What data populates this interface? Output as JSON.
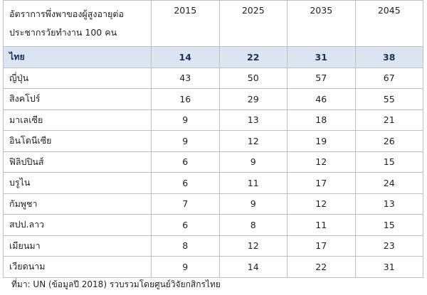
{
  "table": {
    "header_label_line1": "อัตราการพึ่งพาของผู้สูงอายุต่อ",
    "header_label_line2": "ประชากรวัยทำงาน 100 คน",
    "years": [
      "2015",
      "2025",
      "2035",
      "2045"
    ],
    "highlight_color": "#dbe5f1",
    "rows": [
      {
        "country": "ไทย",
        "values": [
          "14",
          "22",
          "31",
          "38"
        ],
        "highlight": true
      },
      {
        "country": "ญี่ปุ่น",
        "values": [
          "43",
          "50",
          "57",
          "67"
        ]
      },
      {
        "country": "สิงคโปร์",
        "values": [
          "16",
          "29",
          "46",
          "55"
        ]
      },
      {
        "country": "มาเลเซีย",
        "values": [
          "9",
          "13",
          "18",
          "21"
        ]
      },
      {
        "country": "อินโดนีเซีย",
        "values": [
          "9",
          "12",
          "19",
          "26"
        ]
      },
      {
        "country": "ฟิลิปปินส์",
        "values": [
          "6",
          "9",
          "12",
          "15"
        ]
      },
      {
        "country": "บรูไน",
        "values": [
          "6",
          "11",
          "17",
          "24"
        ]
      },
      {
        "country": "กัมพูชา",
        "values": [
          "7",
          "9",
          "12",
          "13"
        ]
      },
      {
        "country": "สปป.ลาว",
        "values": [
          "6",
          "8",
          "11",
          "15"
        ]
      },
      {
        "country": "เมียนมา",
        "values": [
          "8",
          "12",
          "17",
          "23"
        ]
      },
      {
        "country": "เวียดนาม",
        "values": [
          "9",
          "14",
          "22",
          "31"
        ]
      }
    ]
  },
  "source_note": "ที่มา: UN (ข้อมูลปี 2018) รวบรวมโดยศูนย์วิจัยกสิกรไทย"
}
